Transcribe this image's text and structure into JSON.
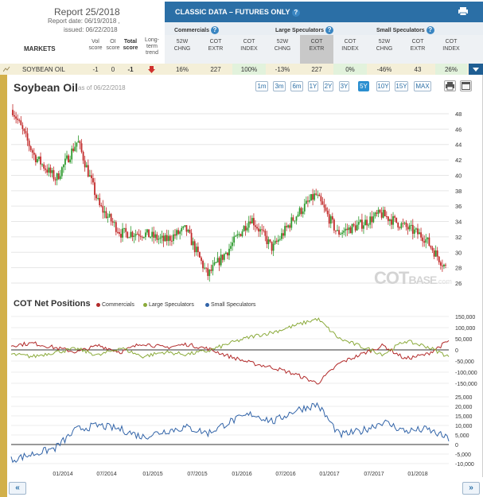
{
  "report": {
    "title": "Report 25/2018",
    "report_date": "Report date: 06/19/2018 ,",
    "issued": "issued: 06/22/2018"
  },
  "markets_label": "MARKETS",
  "score_headers": {
    "vol": [
      "Vol",
      "score"
    ],
    "oi": [
      "OI",
      "score"
    ],
    "total": [
      "Total",
      "score"
    ],
    "trend": [
      "Long-",
      "term",
      "trend"
    ]
  },
  "classic": {
    "title": "CLASSIC DATA – FUTURES ONLY",
    "help": "?",
    "groups": [
      "Commercials",
      "Large Speculators",
      "Small Speculators"
    ],
    "columns": [
      [
        "52W",
        "CHNG"
      ],
      [
        "COT",
        "EXTR"
      ],
      [
        "COT",
        "INDEX"
      ],
      [
        "52W",
        "CHNG"
      ],
      [
        "COT",
        "EXTR"
      ],
      [
        "COT",
        "INDEX"
      ],
      [
        "52W",
        "CHNG"
      ],
      [
        "COT",
        "EXTR"
      ],
      [
        "COT",
        "INDEX"
      ]
    ]
  },
  "row": {
    "market": "SOYBEAN OIL",
    "vol": "-1",
    "oi": "0",
    "total": "-1",
    "trend_icon": "arrow-down-icon",
    "values": [
      "16%",
      "227",
      "100%",
      "-13%",
      "227",
      "0%",
      "-46%",
      "43",
      "26%"
    ]
  },
  "chart": {
    "title": "Soybean Oil",
    "asof": "as of 06/22/2018",
    "ranges": [
      "1m",
      "3m",
      "6m",
      "1Y",
      "2Y",
      "3Y",
      "5Y",
      "10Y",
      "15Y",
      "MAX"
    ],
    "active_range": "5Y",
    "price_ticks": [
      "48",
      "46",
      "44",
      "42",
      "40",
      "38",
      "36",
      "34",
      "32",
      "30",
      "28",
      "26"
    ],
    "watermark": "COT",
    "watermark_suffix": "BASE",
    "watermark_domain": ".com",
    "cot_title": "COT Net Positions",
    "legend": [
      "Commercials",
      "Large Speculators",
      "Small Speculators"
    ],
    "net_ticks": [
      "150,000",
      "100,000",
      "50,000",
      "0",
      "-50,000",
      "-100,000",
      "-150,000"
    ],
    "small_ticks": [
      "25,000",
      "20,000",
      "15,000",
      "10,000",
      "5,000",
      "0",
      "-5,000",
      "-10,000"
    ],
    "x_labels": [
      "01/2014",
      "07/2014",
      "01/2015",
      "07/2015",
      "01/2016",
      "07/2016",
      "01/2017",
      "07/2017",
      "01/2018"
    ]
  },
  "nav": {
    "prev": "«",
    "next": "»"
  },
  "chart_data": [
    {
      "type": "line",
      "title": "Soybean Oil",
      "ylim": [
        25,
        50
      ],
      "x": [
        "2013-07",
        "2013-10",
        "2014-01",
        "2014-04",
        "2014-07",
        "2014-10",
        "2015-01",
        "2015-04",
        "2015-07",
        "2015-10",
        "2016-01",
        "2016-04",
        "2016-07",
        "2016-10",
        "2017-01",
        "2017-04",
        "2017-07",
        "2017-10",
        "2018-01",
        "2018-04",
        "2018-06"
      ],
      "series": [
        {
          "values": [
            48.5,
            42.5,
            39.5,
            44.5,
            36.0,
            32.5,
            32.5,
            31.5,
            33.0,
            27.0,
            30.5,
            34.5,
            30.5,
            34.5,
            37.5,
            32.5,
            33.5,
            35.0,
            33.5,
            32.0,
            28.0
          ]
        }
      ]
    },
    {
      "type": "line",
      "title": "COT Net Positions",
      "ylim": [
        -170000,
        170000
      ],
      "x": [
        "2013-07",
        "2013-10",
        "2014-01",
        "2014-04",
        "2014-07",
        "2014-10",
        "2015-01",
        "2015-04",
        "2015-07",
        "2015-10",
        "2016-01",
        "2016-04",
        "2016-07",
        "2016-10",
        "2017-01",
        "2017-04",
        "2017-07",
        "2017-10",
        "2018-01",
        "2018-04",
        "2018-06"
      ],
      "series": [
        {
          "name": "Commercials",
          "values": [
            20000,
            30000,
            10000,
            -10000,
            20000,
            -10000,
            30000,
            10000,
            25000,
            5000,
            -30000,
            -60000,
            -80000,
            -110000,
            -150000,
            -60000,
            -20000,
            20000,
            -40000,
            -20000,
            40000
          ]
        },
        {
          "name": "Large Speculators",
          "values": [
            -20000,
            -30000,
            -10000,
            5000,
            -25000,
            10000,
            -30000,
            -10000,
            -20000,
            -5000,
            30000,
            60000,
            80000,
            110000,
            140000,
            50000,
            15000,
            -20000,
            40000,
            15000,
            -30000
          ]
        }
      ]
    },
    {
      "type": "line",
      "x": [
        "2013-07",
        "2013-10",
        "2014-01",
        "2014-04",
        "2014-07",
        "2014-10",
        "2015-01",
        "2015-04",
        "2015-07",
        "2015-10",
        "2016-01",
        "2016-04",
        "2016-07",
        "2016-10",
        "2017-01",
        "2017-04",
        "2017-07",
        "2017-10",
        "2018-01",
        "2018-04",
        "2018-06"
      ],
      "ylim": [
        -10000,
        27000
      ],
      "series": [
        {
          "name": "Small Speculators",
          "values": [
            -8000,
            -5000,
            -2000,
            8000,
            10000,
            8000,
            4000,
            7000,
            9000,
            6000,
            12000,
            16000,
            12000,
            18000,
            21000,
            5000,
            7000,
            12000,
            7000,
            8000,
            3000
          ]
        }
      ]
    }
  ]
}
